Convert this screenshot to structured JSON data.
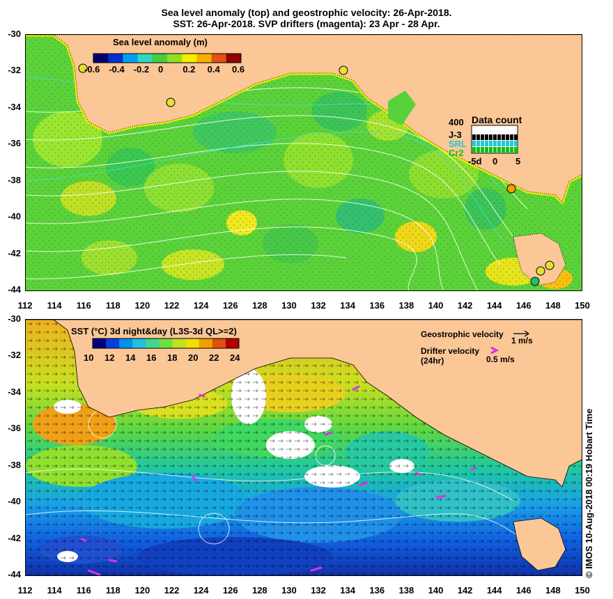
{
  "title_line1": "Sea level anomaly (top) and geostrophic velocity: 26-Apr-2018.",
  "title_line2": "SST: 26-Apr-2018. SVP drifters (magenta): 23 Apr - 28 Apr.",
  "x_ticks": [
    "112",
    "114",
    "116",
    "118",
    "120",
    "122",
    "124",
    "126",
    "128",
    "130",
    "132",
    "134",
    "136",
    "138",
    "140",
    "142",
    "144",
    "146",
    "148",
    "150"
  ],
  "y_ticks": [
    "-30",
    "-32",
    "-34",
    "-36",
    "-38",
    "-40",
    "-42",
    "-44"
  ],
  "sla_colorbar": {
    "title": "Sea level anomaly (m)",
    "labels": [
      "-0.6",
      "-0.4",
      "-0.2",
      "0",
      "0.2",
      "0.4",
      "0.6"
    ],
    "colors": [
      "#00006e",
      "#0030d0",
      "#00a0f0",
      "#30d8c0",
      "#40d040",
      "#90e020",
      "#f0f000",
      "#f8b000",
      "#e05010",
      "#900000"
    ]
  },
  "data_count": {
    "title": "Data count",
    "max_label": "400",
    "series": [
      "J-3",
      "SRL",
      "Cr2"
    ],
    "series_colors": [
      "#000000",
      "#20c8d8",
      "#10c010"
    ],
    "x_labels": [
      "-5d",
      "0",
      "5"
    ]
  },
  "sst_colorbar": {
    "title": "SST (°C) 3d night&day (L3S-3d QL>=2)",
    "labels": [
      "10",
      "12",
      "14",
      "16",
      "18",
      "20",
      "22",
      "24"
    ],
    "colors": [
      "#000080",
      "#0040e0",
      "#0090f0",
      "#20c0e0",
      "#40d890",
      "#70e040",
      "#c0e020",
      "#f0e000",
      "#f0a000",
      "#e05010",
      "#b00000"
    ]
  },
  "geostrophic_legend": {
    "label": "Geostrophic velocity",
    "scale": "1 m/s"
  },
  "drifter_legend": {
    "label": "Drifter velocity",
    "label2": "(24hr)",
    "scale": "0.5 m/s"
  },
  "credit": "© IMOS 10-Aug-2018 00:19 Hobart Time",
  "colors": {
    "land": "#fbc797",
    "ocean_green": "#58d23a",
    "drifter": "#e030e0"
  }
}
